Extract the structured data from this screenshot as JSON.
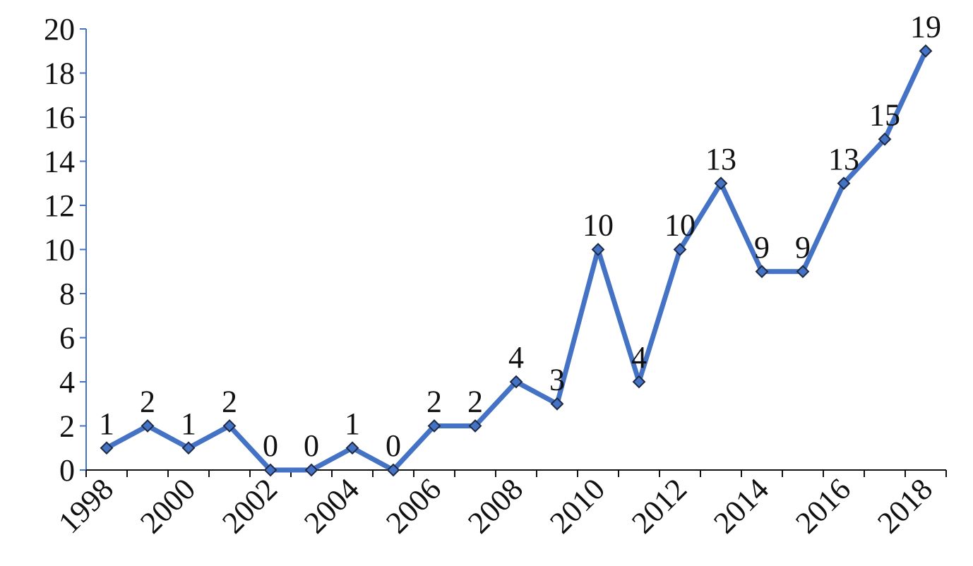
{
  "chart_data": {
    "type": "line",
    "categories": [
      "1998",
      null,
      "2000",
      null,
      "2002",
      null,
      "2004",
      null,
      "2006",
      null,
      "2008",
      null,
      "2010",
      null,
      "2012",
      null,
      "2014",
      null,
      "2016",
      null,
      "2018"
    ],
    "series": [
      {
        "color": "#4472c4",
        "values": [
          1,
          2,
          1,
          2,
          0,
          0,
          1,
          0,
          2,
          2,
          4,
          3,
          10,
          4,
          10,
          13,
          9,
          9,
          13,
          15,
          19
        ]
      }
    ],
    "ylim": [
      0,
      20
    ],
    "yticks": [
      0,
      2,
      4,
      6,
      8,
      10,
      12,
      14,
      16,
      18,
      20
    ]
  }
}
